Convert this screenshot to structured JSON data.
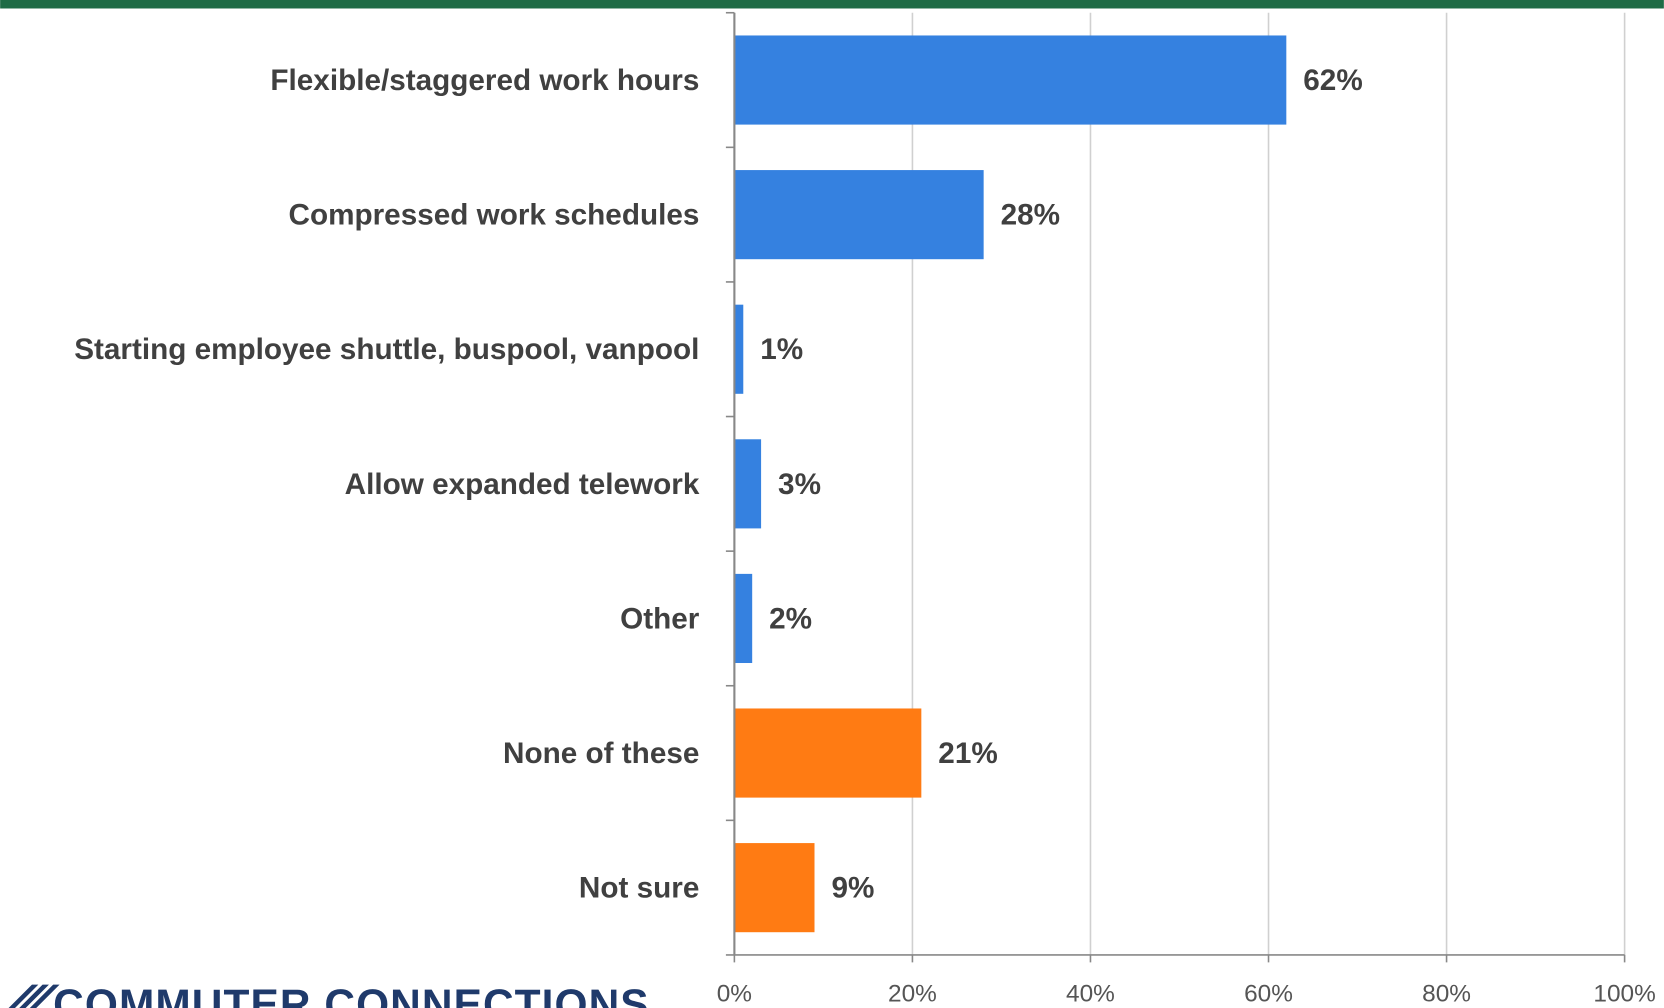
{
  "chart_data": {
    "type": "bar",
    "orientation": "horizontal",
    "categories": [
      "Flexible/staggered work hours",
      "Compressed work schedules",
      "Starting employee shuttle, buspool, vanpool",
      "Allow expanded telework",
      "Other",
      "None of these",
      "Not sure"
    ],
    "values": [
      62,
      28,
      1,
      3,
      2,
      21,
      9
    ],
    "value_labels": [
      "62%",
      "28%",
      "1%",
      "3%",
      "2%",
      "21%",
      "9%"
    ],
    "colors": [
      "#3581e0",
      "#3581e0",
      "#3581e0",
      "#3581e0",
      "#3581e0",
      "#ff7b13",
      "#ff7b13"
    ],
    "xlim": [
      0,
      100
    ],
    "xticks": [
      {
        "value": 0,
        "label": "0%"
      },
      {
        "value": 20,
        "label": "20%"
      },
      {
        "value": 40,
        "label": "40%"
      },
      {
        "value": 60,
        "label": "60%"
      },
      {
        "value": 80,
        "label": "80%"
      },
      {
        "value": 100,
        "label": "100%"
      }
    ],
    "grid": true
  },
  "logo": "COMMUTER CONNECTIONS"
}
